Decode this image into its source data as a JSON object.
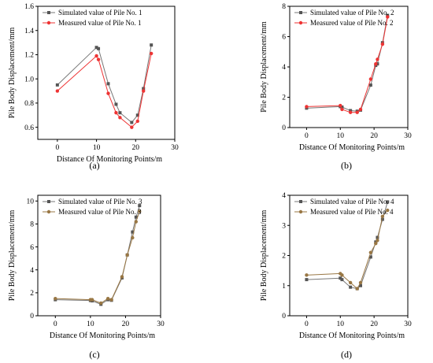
{
  "colors": {
    "axis": "#000000",
    "simulated_marker": "#555555",
    "simulated_line": "#777777",
    "measured_red": "#ee3333",
    "measured_brown": "#997744",
    "band_fill": "#fff0f0"
  },
  "chart_data": [
    {
      "type": "line",
      "panel_label": "(a)",
      "xlabel": "Distance Of Monitoring Points/m",
      "ylabel": "Pile Body Displacement/mm",
      "xlim": [
        -5,
        30
      ],
      "ylim": [
        0.5,
        1.6
      ],
      "xticks": [
        0,
        10,
        20,
        30
      ],
      "yticks": [
        0.6,
        0.8,
        1.0,
        1.2,
        1.4,
        1.6
      ],
      "ytick_labels": [
        "0.6",
        "0.8",
        "1.0",
        "1.2",
        "1.4",
        "1.6"
      ],
      "legend_position": "top-left",
      "series": [
        {
          "name": "Simulated value of Pile No. 1",
          "marker": "square",
          "color": "#555555",
          "x": [
            0,
            10,
            10.5,
            13,
            15,
            16,
            19,
            20.5,
            22,
            24
          ],
          "y": [
            0.95,
            1.26,
            1.25,
            0.96,
            0.79,
            0.72,
            0.64,
            0.7,
            0.92,
            1.28
          ]
        },
        {
          "name": "Measured value of Pile No. 1",
          "marker": "circle",
          "color": "#ee3333",
          "x": [
            0,
            10,
            10.5,
            13,
            15,
            16,
            19,
            20.5,
            22,
            24
          ],
          "y": [
            0.9,
            1.19,
            1.16,
            0.88,
            0.72,
            0.68,
            0.6,
            0.65,
            0.9,
            1.21
          ]
        }
      ]
    },
    {
      "type": "line",
      "panel_label": "(b)",
      "xlabel": "Distance Of Monitoring Points/m",
      "ylabel": "Pile Body Displacement/mm",
      "xlim": [
        -5,
        30
      ],
      "ylim": [
        0,
        8
      ],
      "xticks": [
        0,
        10,
        20,
        30
      ],
      "yticks": [
        0,
        2,
        4,
        6,
        8
      ],
      "ytick_labels": [
        "0",
        "2",
        "4",
        "6",
        "8"
      ],
      "legend_position": "top-left",
      "series": [
        {
          "name": "Simulated value of Pile No. 2",
          "marker": "square",
          "color": "#555555",
          "x": [
            0,
            10,
            10.5,
            13,
            15,
            16,
            19,
            20.5,
            21,
            22.5,
            24
          ],
          "y": [
            1.28,
            1.38,
            1.35,
            1.12,
            1.08,
            1.15,
            2.8,
            4.1,
            4.2,
            5.6,
            7.4
          ]
        },
        {
          "name": "Measured value of Pile No. 2",
          "marker": "circle",
          "color": "#ee3333",
          "x": [
            0,
            10,
            10.5,
            13,
            15,
            16,
            19,
            20.5,
            21,
            22.5,
            24
          ],
          "y": [
            1.38,
            1.45,
            1.2,
            1.0,
            1.0,
            1.2,
            3.2,
            4.2,
            4.5,
            5.5,
            7.3
          ]
        }
      ]
    },
    {
      "type": "line",
      "panel_label": "(c)",
      "xlabel": "Distance Of Monitoring Points/m",
      "ylabel": "Pile Body Displacement/mm",
      "xlim": [
        -5,
        30
      ],
      "ylim": [
        0,
        10.5
      ],
      "xticks": [
        0,
        10,
        20,
        30
      ],
      "yticks": [
        0,
        2,
        4,
        6,
        8,
        10
      ],
      "ytick_labels": [
        "0",
        "2",
        "4",
        "6",
        "8",
        "10"
      ],
      "legend_position": "top-left",
      "series": [
        {
          "name": "Simulated value of Pile No. 3",
          "marker": "square",
          "color": "#555555",
          "x": [
            0,
            10,
            10.5,
            13,
            15,
            16,
            19,
            20.5,
            22,
            23,
            24
          ],
          "y": [
            1.4,
            1.33,
            1.3,
            1.0,
            1.4,
            1.35,
            3.3,
            5.3,
            7.3,
            8.6,
            9.6
          ]
        },
        {
          "name": "Measured value of Pile No. 3",
          "marker": "circle",
          "color": "#997744",
          "x": [
            0,
            10,
            10.5,
            13,
            15,
            16,
            19,
            20.5,
            22,
            23,
            24
          ],
          "y": [
            1.5,
            1.4,
            1.4,
            1.1,
            1.5,
            1.4,
            3.4,
            5.3,
            6.8,
            8.2,
            9.1
          ]
        }
      ]
    },
    {
      "type": "line",
      "panel_label": "(d)",
      "xlabel": "Distance Of Monitoring Points/m",
      "ylabel": "Pile Body Displacement/mm",
      "xlim": [
        -5,
        30
      ],
      "ylim": [
        0,
        4
      ],
      "xticks": [
        0,
        10,
        20,
        30
      ],
      "yticks": [
        0,
        1,
        2,
        3,
        4
      ],
      "ytick_labels": [
        "0",
        "1",
        "2",
        "3",
        "4"
      ],
      "legend_position": "top-left",
      "series": [
        {
          "name": "Simulated value of Pile No. 4",
          "marker": "square",
          "color": "#555555",
          "x": [
            0,
            10,
            10.5,
            13,
            15,
            16,
            19,
            20.5,
            21,
            22.5,
            24
          ],
          "y": [
            1.2,
            1.25,
            1.2,
            0.95,
            0.9,
            1.0,
            1.95,
            2.45,
            2.6,
            3.2,
            3.78
          ]
        },
        {
          "name": "Measured value of Pile No. 4",
          "marker": "circle",
          "color": "#997744",
          "x": [
            0,
            10,
            10.5,
            13,
            15,
            16,
            19,
            20.5,
            21,
            22.5,
            24
          ],
          "y": [
            1.35,
            1.4,
            1.35,
            1.1,
            0.9,
            1.1,
            2.1,
            2.4,
            2.5,
            3.3,
            3.5
          ]
        }
      ]
    }
  ]
}
